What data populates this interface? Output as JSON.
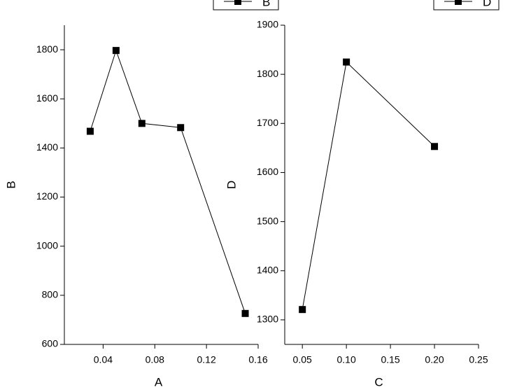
{
  "chart_data": [
    {
      "type": "line",
      "x_label": "A",
      "y_label": "B",
      "series": [
        {
          "name": "B",
          "color": "#000000",
          "x": [
            0.03,
            0.05,
            0.07,
            0.1,
            0.15
          ],
          "values": [
            1468,
            1797,
            1500,
            1483,
            726
          ]
        }
      ],
      "xlim": [
        0.01,
        0.16
      ],
      "xticks": [
        {
          "value": 0.04,
          "label": "0.04"
        },
        {
          "value": 0.08,
          "label": "0.08"
        },
        {
          "value": 0.12,
          "label": "0.12"
        },
        {
          "value": 0.16,
          "label": "0.16"
        }
      ],
      "ylim": [
        600,
        1900
      ],
      "yticks": [
        600,
        800,
        1000,
        1200,
        1400,
        1600,
        1800
      ],
      "legend": "top-right",
      "grid": false
    },
    {
      "type": "line",
      "x_label": "C",
      "y_label": "D",
      "series": [
        {
          "name": "D",
          "color": "#000000",
          "x": [
            0.05,
            0.1,
            0.2
          ],
          "values": [
            1321,
            1825,
            1653
          ]
        }
      ],
      "xlim": [
        0.03,
        0.25
      ],
      "xticks": [
        {
          "value": 0.05,
          "label": "0.05"
        },
        {
          "value": 0.1,
          "label": "0.10"
        },
        {
          "value": 0.15,
          "label": "0.15"
        },
        {
          "value": 0.2,
          "label": "0.20"
        },
        {
          "value": 0.25,
          "label": "0.25"
        }
      ],
      "ylim": [
        1250,
        1900
      ],
      "yticks": [
        1300,
        1400,
        1500,
        1600,
        1700,
        1800,
        1900
      ],
      "legend": "top-right",
      "grid": false
    }
  ]
}
